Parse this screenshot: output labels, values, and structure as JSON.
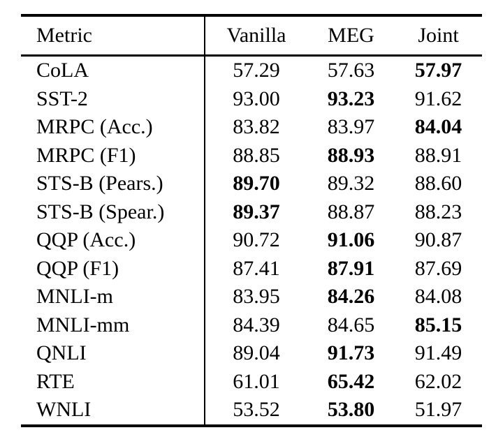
{
  "colors": {
    "background": "#ffffff",
    "text": "#000000",
    "rules": "#000000"
  },
  "table": {
    "columns": [
      "Metric",
      "Vanilla",
      "MEG",
      "Joint"
    ],
    "rows": [
      {
        "metric": "CoLA",
        "values": [
          "57.29",
          "57.63",
          "57.97"
        ],
        "bold_col": 2
      },
      {
        "metric": "SST-2",
        "values": [
          "93.00",
          "93.23",
          "91.62"
        ],
        "bold_col": 1
      },
      {
        "metric": "MRPC (Acc.)",
        "values": [
          "83.82",
          "83.97",
          "84.04"
        ],
        "bold_col": 2
      },
      {
        "metric": "MRPC (F1)",
        "values": [
          "88.85",
          "88.93",
          "88.91"
        ],
        "bold_col": 1
      },
      {
        "metric": "STS-B (Pears.)",
        "values": [
          "89.70",
          "89.32",
          "88.60"
        ],
        "bold_col": 0
      },
      {
        "metric": "STS-B (Spear.)",
        "values": [
          "89.37",
          "88.87",
          "88.23"
        ],
        "bold_col": 0
      },
      {
        "metric": "QQP (Acc.)",
        "values": [
          "90.72",
          "91.06",
          "90.87"
        ],
        "bold_col": 1
      },
      {
        "metric": "QQP (F1)",
        "values": [
          "87.41",
          "87.91",
          "87.69"
        ],
        "bold_col": 1
      },
      {
        "metric": "MNLI-m",
        "values": [
          "83.95",
          "84.26",
          "84.08"
        ],
        "bold_col": 1
      },
      {
        "metric": "MNLI-mm",
        "values": [
          "84.39",
          "84.65",
          "85.15"
        ],
        "bold_col": 2
      },
      {
        "metric": "QNLI",
        "values": [
          "89.04",
          "91.73",
          "91.49"
        ],
        "bold_col": 1
      },
      {
        "metric": "RTE",
        "values": [
          "61.01",
          "65.42",
          "62.02"
        ],
        "bold_col": 1
      },
      {
        "metric": "WNLI",
        "values": [
          "53.52",
          "53.80",
          "51.97"
        ],
        "bold_col": 1
      }
    ]
  }
}
